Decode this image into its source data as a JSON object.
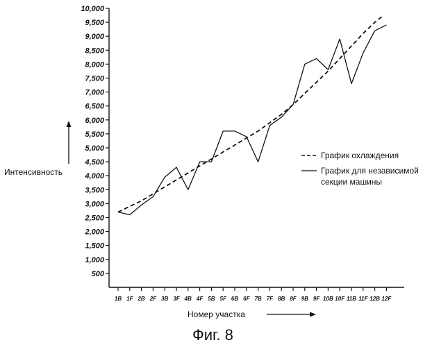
{
  "chart_data": {
    "type": "line",
    "caption": "Фиг. 8",
    "xlabel": "Номер участка",
    "ylabel": "Интенсивность",
    "ylim": [
      0,
      10000
    ],
    "yticks": [
      "10,000",
      "9,500",
      "9,000",
      "8,500",
      "8,000",
      "7,500",
      "7,000",
      "6,500",
      "6,000",
      "5,500",
      "5,000",
      "4,500",
      "4,000",
      "3,500",
      "3,000",
      "2,500",
      "2,000",
      "1,500",
      "1,000",
      "500"
    ],
    "ytick_values": [
      10000,
      9500,
      9000,
      8500,
      8000,
      7500,
      7000,
      6500,
      6000,
      5500,
      5000,
      4500,
      4000,
      3500,
      3000,
      2500,
      2000,
      1500,
      1000,
      500
    ],
    "categories": [
      "1B",
      "1F",
      "2B",
      "2F",
      "3B",
      "3F",
      "4B",
      "4F",
      "5B",
      "5F",
      "6B",
      "6F",
      "7B",
      "7F",
      "8B",
      "8F",
      "9B",
      "9F",
      "10B",
      "10F",
      "11B",
      "11F",
      "12B",
      "12F"
    ],
    "series": [
      {
        "name": "График охлаждения",
        "style": "dashed",
        "x": [
          0,
          1,
          2,
          3,
          4,
          5,
          6,
          7,
          8,
          9,
          10,
          11,
          12,
          13,
          14,
          15,
          16,
          17,
          18,
          19,
          20,
          21,
          22,
          22.6
        ],
        "values": [
          2700,
          2900,
          3100,
          3350,
          3600,
          3850,
          4100,
          4350,
          4600,
          4850,
          5100,
          5350,
          5600,
          5900,
          6200,
          6550,
          6950,
          7350,
          7750,
          8200,
          8650,
          9100,
          9500,
          9700
        ]
      },
      {
        "name": "График для независимой секции машины",
        "style": "solid",
        "x": [
          0,
          1,
          2,
          3,
          4,
          5,
          6,
          7,
          8,
          9,
          10,
          11,
          12,
          13,
          14,
          15,
          16,
          17,
          18,
          19,
          20,
          21,
          22,
          23
        ],
        "values": [
          2700,
          2600,
          2950,
          3250,
          3950,
          4300,
          3500,
          4500,
          4500,
          5600,
          5600,
          5400,
          4500,
          5800,
          6100,
          6550,
          8000,
          8200,
          7800,
          8900,
          7300,
          8400,
          9200,
          9400
        ]
      }
    ],
    "legend": {
      "placement": "right",
      "entries": [
        {
          "label": "График охлаждения",
          "style": "dashed"
        },
        {
          "label": "График для независимой",
          "label_line2": "секции машины",
          "style": "solid"
        }
      ]
    },
    "grid": false,
    "line_color": "#111111"
  }
}
